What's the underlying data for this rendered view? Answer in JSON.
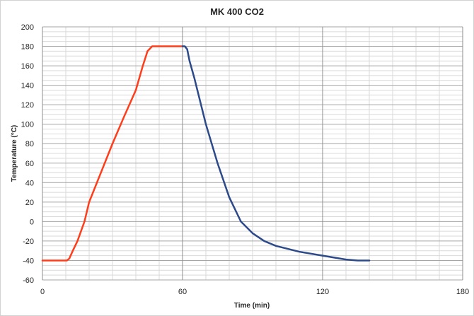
{
  "chart_data": {
    "type": "line",
    "title": "MK 400 CO2",
    "xlabel": "Time (min)",
    "ylabel": "Temperature (°C)",
    "xlim": [
      0,
      180
    ],
    "ylim": [
      -60,
      200
    ],
    "x_ticks": [
      0,
      60,
      120,
      180
    ],
    "y_ticks": [
      -60,
      -40,
      -20,
      0,
      20,
      40,
      60,
      80,
      100,
      120,
      140,
      160,
      180,
      200
    ],
    "x_minor_step": 10,
    "y_minor_step": 5,
    "grid": true,
    "legend": "none",
    "series": [
      {
        "color": "#ff3d1a",
        "points": [
          [
            0,
            -40
          ],
          [
            10.5,
            -40
          ],
          [
            11.5,
            -38
          ],
          [
            13,
            -30
          ],
          [
            15,
            -20
          ],
          [
            18,
            0
          ],
          [
            20,
            20
          ],
          [
            25,
            50
          ],
          [
            30,
            80
          ],
          [
            35,
            108
          ],
          [
            40,
            135
          ],
          [
            43,
            160
          ],
          [
            45,
            175
          ],
          [
            47,
            180
          ],
          [
            55,
            180
          ],
          [
            60,
            180
          ]
        ]
      },
      {
        "color": "#2c4a8a",
        "points": [
          [
            60,
            180
          ],
          [
            61,
            180
          ],
          [
            62,
            177
          ],
          [
            63,
            165
          ],
          [
            65,
            148
          ],
          [
            70,
            100
          ],
          [
            75,
            60
          ],
          [
            80,
            25
          ],
          [
            85,
            0
          ],
          [
            90,
            -12
          ],
          [
            95,
            -20
          ],
          [
            100,
            -25
          ],
          [
            110,
            -31
          ],
          [
            120,
            -35
          ],
          [
            130,
            -39
          ],
          [
            135,
            -40
          ],
          [
            140,
            -40
          ]
        ]
      }
    ]
  }
}
